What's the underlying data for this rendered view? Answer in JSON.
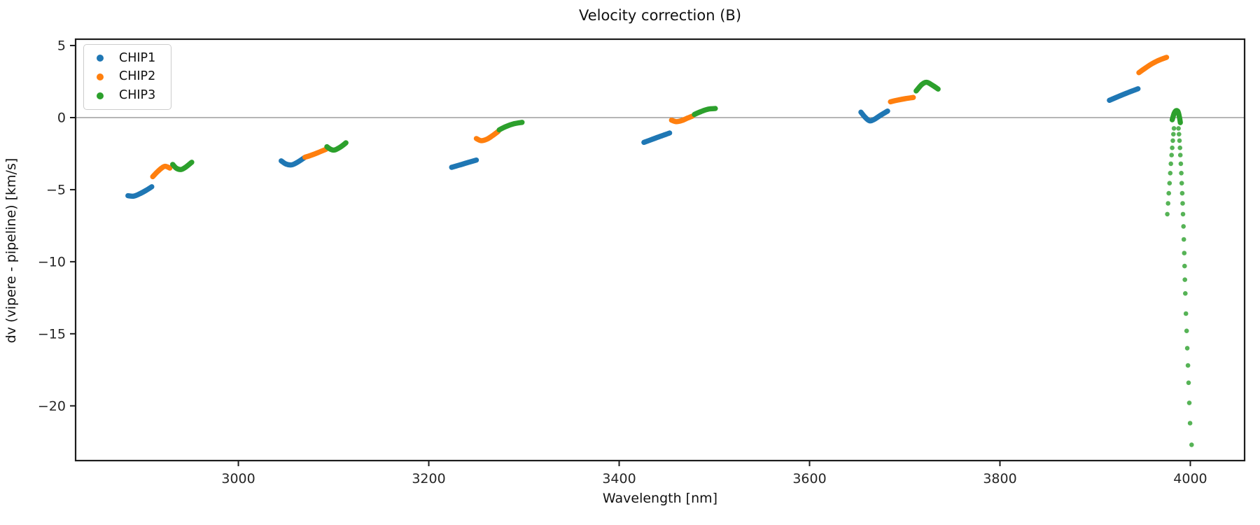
{
  "title": "Velocity correction (B)",
  "axes": {
    "xlabel": "Wavelength [nm]",
    "ylabel": "dv (vipere - pipeline) [km/s]",
    "x_ticks": [
      3000,
      3200,
      3400,
      3600,
      3800,
      4000
    ],
    "y_ticks": [
      5,
      0,
      -5,
      -10,
      -15,
      -20
    ],
    "x_range": [
      2829,
      4057
    ],
    "y_range": [
      -23.8,
      5.44
    ],
    "zero_line": true,
    "spine_color": "#1c1c1c",
    "zero_line_color": "#8a8a8a",
    "tick_label_color": "#262626"
  },
  "legend": {
    "position": "upper-left",
    "entries": [
      {
        "label": "CHIP1",
        "color": "#1f77b4"
      },
      {
        "label": "CHIP2",
        "color": "#ff7f0e"
      },
      {
        "label": "CHIP3",
        "color": "#2ca02c"
      }
    ]
  },
  "chart_data": {
    "type": "scatter",
    "xlabel": "Wavelength [nm]",
    "ylabel": "dv (vipere - pipeline) [km/s]",
    "xlim": [
      2829,
      4057
    ],
    "ylim": [
      -23.8,
      5.44
    ],
    "grid": false,
    "legend_position": "upper left",
    "series": [
      {
        "name": "CHIP1",
        "color": "#1f77b4",
        "marker": "dot",
        "segments": [
          [
            [
              2884,
              -5.42
            ],
            [
              2890,
              -5.45
            ],
            [
              2896,
              -5.3
            ],
            [
              2903,
              -5.05
            ],
            [
              2909,
              -4.8
            ]
          ],
          [
            [
              3045,
              -3.0
            ],
            [
              3050,
              -3.22
            ],
            [
              3056,
              -3.28
            ],
            [
              3062,
              -3.1
            ],
            [
              3069,
              -2.8
            ]
          ],
          [
            [
              3224,
              -3.45
            ],
            [
              3232,
              -3.3
            ],
            [
              3241,
              -3.12
            ],
            [
              3250,
              -2.95
            ]
          ],
          [
            [
              3426,
              -1.72
            ],
            [
              3435,
              -1.5
            ],
            [
              3444,
              -1.28
            ],
            [
              3453,
              -1.07
            ]
          ],
          [
            [
              3654,
              0.38
            ],
            [
              3658,
              0.05
            ],
            [
              3663,
              -0.22
            ],
            [
              3668,
              -0.12
            ],
            [
              3675,
              0.18
            ],
            [
              3682,
              0.45
            ]
          ],
          [
            [
              3915,
              1.2
            ],
            [
              3925,
              1.48
            ],
            [
              3935,
              1.75
            ],
            [
              3945,
              2.0
            ]
          ]
        ]
      },
      {
        "name": "CHIP2",
        "color": "#ff7f0e",
        "marker": "dot",
        "segments": [
          [
            [
              2910,
              -4.1
            ],
            [
              2914,
              -3.82
            ],
            [
              2919,
              -3.52
            ],
            [
              2923,
              -3.38
            ],
            [
              2928,
              -3.5
            ]
          ],
          [
            [
              3070,
              -2.75
            ],
            [
              3077,
              -2.6
            ],
            [
              3084,
              -2.42
            ],
            [
              3092,
              -2.2
            ]
          ],
          [
            [
              3250,
              -1.45
            ],
            [
              3255,
              -1.6
            ],
            [
              3261,
              -1.5
            ],
            [
              3267,
              -1.25
            ],
            [
              3273,
              -0.95
            ]
          ],
          [
            [
              3455,
              -0.18
            ],
            [
              3460,
              -0.28
            ],
            [
              3466,
              -0.2
            ],
            [
              3472,
              -0.03
            ],
            [
              3477,
              0.1
            ]
          ],
          [
            [
              3685,
              1.1
            ],
            [
              3693,
              1.22
            ],
            [
              3701,
              1.32
            ],
            [
              3709,
              1.4
            ]
          ],
          [
            [
              3946,
              3.12
            ],
            [
              3953,
              3.45
            ],
            [
              3960,
              3.75
            ],
            [
              3967,
              3.98
            ],
            [
              3975,
              4.18
            ]
          ]
        ]
      },
      {
        "name": "CHIP3",
        "color": "#2ca02c",
        "marker": "dot",
        "segments": [
          [
            [
              2931,
              -3.25
            ],
            [
              2935,
              -3.52
            ],
            [
              2940,
              -3.6
            ],
            [
              2945,
              -3.42
            ],
            [
              2951,
              -3.1
            ]
          ],
          [
            [
              3093,
              -2.02
            ],
            [
              3097,
              -2.2
            ],
            [
              3101,
              -2.25
            ],
            [
              3107,
              -2.05
            ],
            [
              3113,
              -1.75
            ]
          ],
          [
            [
              3274,
              -0.85
            ],
            [
              3281,
              -0.62
            ],
            [
              3290,
              -0.42
            ],
            [
              3298,
              -0.33
            ]
          ],
          [
            [
              3479,
              0.22
            ],
            [
              3486,
              0.42
            ],
            [
              3493,
              0.58
            ],
            [
              3501,
              0.63
            ]
          ],
          [
            [
              3712,
              1.85
            ],
            [
              3718,
              2.3
            ],
            [
              3723,
              2.45
            ],
            [
              3729,
              2.25
            ],
            [
              3735,
              1.98
            ]
          ],
          [
            [
              3981,
              -0.15
            ],
            [
              3983,
              0.3
            ],
            [
              3985,
              0.48
            ],
            [
              3987,
              0.42
            ],
            [
              3988.5,
              0.05
            ],
            [
              3989.5,
              -0.35
            ]
          ]
        ],
        "discrete_points": [
          [
            3982.8,
            -0.75
          ],
          [
            3982.2,
            -1.15
          ],
          [
            3981.6,
            -1.6
          ],
          [
            3981.0,
            -2.1
          ],
          [
            3980.3,
            -2.6
          ],
          [
            3979.6,
            -3.2
          ],
          [
            3978.9,
            -3.85
          ],
          [
            3978.2,
            -4.55
          ],
          [
            3977.4,
            -5.25
          ],
          [
            3976.6,
            -5.95
          ],
          [
            3975.8,
            -6.7
          ],
          [
            3987.6,
            -0.75
          ],
          [
            3988.1,
            -1.15
          ],
          [
            3988.6,
            -1.6
          ],
          [
            3989.1,
            -2.1
          ],
          [
            3989.5,
            -2.6
          ],
          [
            3990.0,
            -3.2
          ],
          [
            3990.5,
            -3.85
          ],
          [
            3991.0,
            -4.55
          ],
          [
            3991.5,
            -5.25
          ],
          [
            3991.9,
            -5.95
          ],
          [
            3992.3,
            -6.7
          ],
          [
            3992.8,
            -7.55
          ],
          [
            3993.2,
            -8.45
          ],
          [
            3993.6,
            -9.4
          ],
          [
            3994.0,
            -10.3
          ],
          [
            3994.3,
            -11.25
          ],
          [
            3994.7,
            -12.2
          ],
          [
            3995.4,
            -13.6
          ],
          [
            3996.1,
            -14.8
          ],
          [
            3996.8,
            -16.0
          ],
          [
            3997.5,
            -17.2
          ],
          [
            3998.2,
            -18.4
          ],
          [
            3998.9,
            -19.8
          ],
          [
            3999.7,
            -21.2
          ],
          [
            4001.3,
            -22.7
          ]
        ]
      }
    ]
  }
}
